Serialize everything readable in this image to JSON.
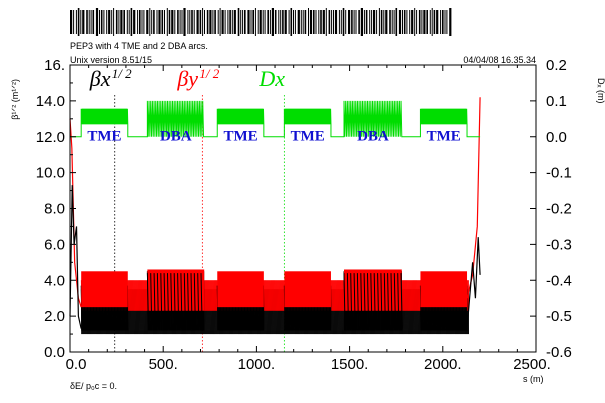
{
  "chart_data": {
    "type": "line",
    "header": {
      "title": "PEP3 with 4 TME and 2 DBA arcs.",
      "version": "Unix version 8.51/15",
      "timestamp": "04/04/08  16.35.34"
    },
    "xlabel": "s (m)",
    "ylabel_left": "β¹ᐟ² (m¹ᐟ²)",
    "ylabel_right": "Dₓ (m)",
    "footer": "δE/ p₀c  =  0.",
    "xlim": [
      0,
      2500
    ],
    "ylim_left": [
      0,
      16
    ],
    "ylim_right": [
      -0.6,
      0.2
    ],
    "x_ticks": [
      "0.0",
      "500.",
      "1000.",
      "1500.",
      "2000.",
      "2500."
    ],
    "y_ticks_left": [
      "0.0",
      "2.0",
      "4.0",
      "6.0",
      "8.0",
      "10.0",
      "12.0",
      "14.0",
      "16."
    ],
    "y_ticks_right": [
      "-0.6",
      "-0.5",
      "-0.4",
      "-0.3",
      "-0.2",
      "-0.1",
      "0.0",
      "0.1",
      "0.2"
    ],
    "legend": [
      {
        "label": "βx",
        "sup": "1/ 2",
        "color": "#000000",
        "marker_s": 240
      },
      {
        "label": "βy",
        "sup": "1/ 2",
        "color": "#ff0000",
        "marker_s": 710
      },
      {
        "label": "Dx",
        "sup": "",
        "color": "#00dd00",
        "marker_s": 1150
      }
    ],
    "regions": [
      {
        "label": "TME",
        "type": "TME",
        "s_start": 60,
        "s_end": 310
      },
      {
        "label": "DBA",
        "type": "DBA",
        "s_start": 415,
        "s_end": 720
      },
      {
        "label": "TME",
        "type": "TME",
        "s_start": 790,
        "s_end": 1040
      },
      {
        "label": "TME",
        "type": "TME",
        "s_start": 1150,
        "s_end": 1400
      },
      {
        "label": "DBA",
        "type": "DBA",
        "s_start": 1470,
        "s_end": 1780
      },
      {
        "label": "TME",
        "type": "TME",
        "s_start": 1880,
        "s_end": 2130
      }
    ],
    "series": [
      {
        "name": "βx",
        "axis": "left",
        "color": "#000000",
        "TME": {
          "min": 1.2,
          "max": 3.7
        },
        "DBA": {
          "min": 1.2,
          "max": 4.5
        },
        "straight": {
          "min": 1.0,
          "max": 3.5
        },
        "ends": {
          "peak": 9.3
        }
      },
      {
        "name": "βy",
        "axis": "left",
        "color": "#ff0000",
        "TME": {
          "min": 2.5,
          "max": 4.5
        },
        "DBA": {
          "min": 2.3,
          "max": 4.6
        },
        "straight": {
          "min": 2.3,
          "max": 4.0
        },
        "ends": {
          "peak": 14.2
        }
      },
      {
        "name": "Dx",
        "axis": "right",
        "color": "#00dd00",
        "baseline": 0.0,
        "TME": {
          "min": 0.035,
          "max": 0.078
        },
        "DBA": {
          "min": 0.0,
          "max": 0.1
        }
      }
    ]
  }
}
